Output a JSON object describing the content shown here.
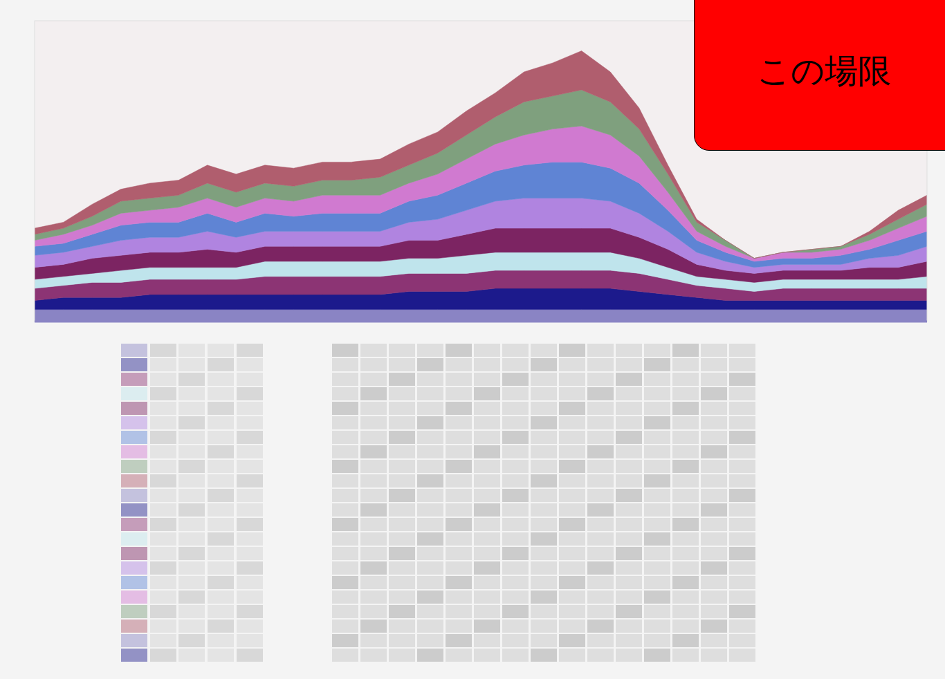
{
  "chart_data": {
    "type": "area",
    "stacked": true,
    "tick_labels": false,
    "grid": false,
    "annotation": "この場限",
    "x": [
      0,
      1,
      2,
      3,
      4,
      5,
      6,
      7,
      8,
      9,
      10,
      11,
      12,
      13,
      14,
      15,
      16,
      17,
      18,
      19,
      20,
      21,
      22,
      23,
      24,
      25,
      26,
      27,
      28,
      29,
      30,
      31
    ],
    "xlim": [
      0,
      31
    ],
    "ylim": [
      0,
      100
    ],
    "series": [
      {
        "color": "#8a84c4",
        "values": [
          4,
          4,
          4,
          4,
          4,
          4,
          4,
          4,
          4,
          4,
          4,
          4,
          4,
          4,
          4,
          4,
          4,
          4,
          4,
          4,
          4,
          4,
          4,
          4,
          4,
          4,
          4,
          4,
          4,
          4,
          4,
          4
        ]
      },
      {
        "color": "#1c1a8c",
        "values": [
          3,
          4,
          4,
          4,
          5,
          5,
          5,
          5,
          5,
          5,
          5,
          5,
          5,
          6,
          6,
          6,
          7,
          7,
          7,
          7,
          7,
          6,
          5,
          4,
          3,
          3,
          3,
          3,
          3,
          3,
          3,
          3
        ]
      },
      {
        "color": "#8c3474",
        "values": [
          4,
          4,
          5,
          5,
          5,
          5,
          5,
          5,
          6,
          6,
          6,
          6,
          6,
          6,
          6,
          6,
          6,
          6,
          6,
          6,
          6,
          6,
          5,
          4,
          4,
          3,
          4,
          4,
          4,
          4,
          4,
          4
        ]
      },
      {
        "color": "#bfe4ec",
        "values": [
          3,
          3,
          3,
          4,
          4,
          4,
          4,
          4,
          5,
          5,
          5,
          5,
          5,
          5,
          5,
          6,
          6,
          6,
          6,
          6,
          6,
          5,
          4,
          3,
          3,
          3,
          3,
          3,
          3,
          3,
          3,
          4
        ]
      },
      {
        "color": "#7c2462",
        "values": [
          4,
          4,
          5,
          5,
          5,
          5,
          6,
          5,
          5,
          5,
          5,
          5,
          5,
          6,
          6,
          7,
          8,
          8,
          8,
          8,
          8,
          7,
          6,
          4,
          3,
          3,
          3,
          3,
          3,
          4,
          4,
          5
        ]
      },
      {
        "color": "#b084e0",
        "values": [
          4,
          4,
          4,
          5,
          5,
          5,
          6,
          5,
          5,
          5,
          5,
          5,
          5,
          6,
          7,
          8,
          9,
          10,
          10,
          10,
          9,
          8,
          6,
          4,
          3,
          2,
          2,
          2,
          2,
          3,
          4,
          5
        ]
      },
      {
        "color": "#5f84d4",
        "values": [
          3,
          3,
          4,
          5,
          5,
          5,
          6,
          5,
          6,
          5,
          6,
          6,
          6,
          7,
          8,
          9,
          10,
          11,
          12,
          12,
          11,
          10,
          7,
          4,
          3,
          2,
          2,
          2,
          3,
          3,
          5,
          5
        ]
      },
      {
        "color": "#d07ad0",
        "values": [
          2,
          3,
          3,
          4,
          4,
          5,
          5,
          5,
          5,
          5,
          6,
          6,
          6,
          6,
          7,
          8,
          9,
          10,
          11,
          12,
          11,
          9,
          6,
          3,
          2,
          1,
          2,
          2,
          2,
          3,
          4,
          5
        ]
      },
      {
        "color": "#7fa07e",
        "values": [
          2,
          2,
          3,
          4,
          4,
          4,
          5,
          5,
          5,
          5,
          5,
          5,
          6,
          6,
          7,
          8,
          9,
          11,
          11,
          12,
          11,
          9,
          6,
          3,
          2,
          0,
          0,
          1,
          1,
          2,
          3,
          4
        ]
      },
      {
        "color": "#b05e6e",
        "values": [
          2,
          2,
          4,
          4,
          5,
          5,
          6,
          6,
          6,
          6,
          6,
          6,
          6,
          7,
          7,
          8,
          8,
          10,
          11,
          13,
          10,
          7,
          3,
          1,
          0,
          0,
          0,
          0,
          0,
          1,
          3,
          3
        ]
      }
    ]
  }
}
